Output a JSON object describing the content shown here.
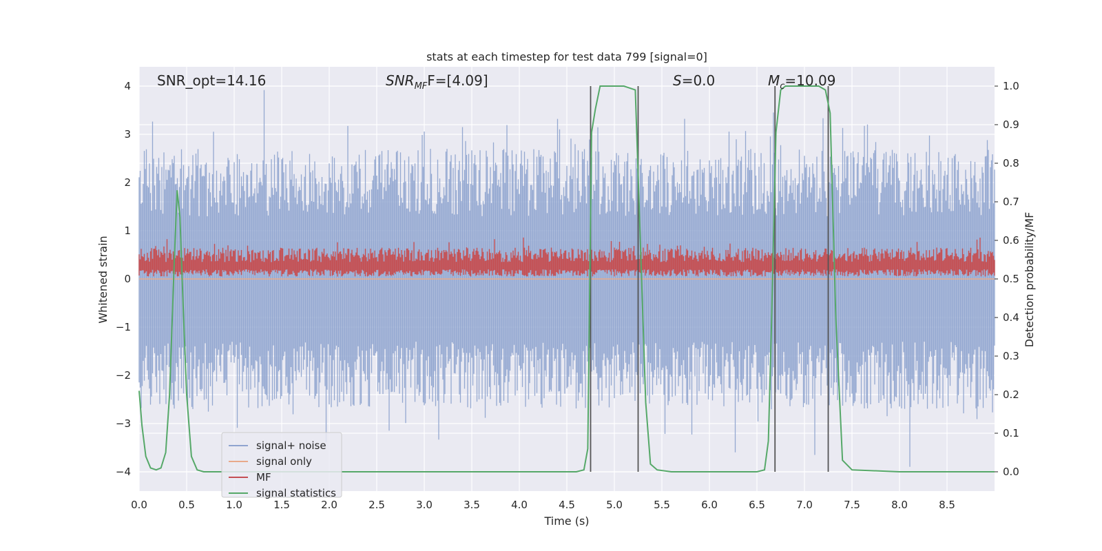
{
  "chart_data": {
    "type": "line",
    "title": "stats at each timestep for test data 799 [signal=0]",
    "xlabel": "Time (s)",
    "ylabel_left": "Whitened strain",
    "ylabel_right": "Detection probability/MF",
    "xlim": [
      0.0,
      9.0
    ],
    "ylim_left": [
      -4.4,
      4.4
    ],
    "ylim_right": [
      -0.05,
      1.05
    ],
    "x_ticks": [
      "0.0",
      "0.5",
      "1.0",
      "1.5",
      "2.0",
      "2.5",
      "3.0",
      "3.5",
      "4.0",
      "4.5",
      "5.0",
      "5.5",
      "6.0",
      "6.5",
      "7.0",
      "7.5",
      "8.0",
      "8.5"
    ],
    "y_ticks_left": [
      "−4",
      "−3",
      "−2",
      "−1",
      "0",
      "1",
      "2",
      "3",
      "4"
    ],
    "y_ticks_right": [
      "0.0",
      "0.1",
      "0.2",
      "0.3",
      "0.4",
      "0.5",
      "0.6",
      "0.7",
      "0.8",
      "0.9",
      "1.0"
    ],
    "grid": true,
    "legend_position": "bottom-left",
    "annotations": {
      "snr_opt": "SNR_opt=14.16",
      "snr_mf_main": "SNR",
      "snr_mf_sub": "MF",
      "snr_mf_value": "F=[4.09]",
      "s_label": "S",
      "s_value": "=0.0",
      "mc_main": "M",
      "mc_sub": "c",
      "mc_value": "=10.09"
    },
    "series": [
      {
        "name": "signal+ noise",
        "color": "#8fa4cf",
        "style": "noise band, amplitude ~±2.5 with spikes to ±4"
      },
      {
        "name": "signal only",
        "color": "#e8a98a",
        "values_note": "flat at 0"
      },
      {
        "name": "MF",
        "color": "#c44e52",
        "style": "band ~0.0 to 0.8 on left axis"
      },
      {
        "name": "signal statistics",
        "color": "#55a868",
        "x": [
          0.0,
          0.03,
          0.07,
          0.12,
          0.18,
          0.23,
          0.28,
          0.32,
          0.37,
          0.4,
          0.43,
          0.46,
          0.5,
          0.55,
          0.61,
          0.68,
          0.75,
          0.8,
          1.0,
          2.0,
          3.0,
          4.0,
          4.6,
          4.68,
          4.72,
          4.76,
          4.8,
          4.85,
          5.0,
          5.1,
          5.22,
          5.28,
          5.33,
          5.38,
          5.45,
          5.6,
          6.0,
          6.5,
          6.58,
          6.62,
          6.65,
          6.7,
          6.75,
          6.8,
          7.0,
          7.15,
          7.22,
          7.27,
          7.33,
          7.4,
          7.5,
          8.0,
          9.0
        ],
        "y": [
          0.21,
          0.12,
          0.04,
          0.01,
          0.005,
          0.01,
          0.05,
          0.2,
          0.55,
          0.73,
          0.66,
          0.45,
          0.2,
          0.04,
          0.005,
          0.0,
          0.0,
          0.0,
          0.0,
          0.0,
          0.0,
          0.0,
          0.0,
          0.005,
          0.06,
          0.88,
          0.94,
          1.0,
          1.0,
          1.0,
          0.99,
          0.55,
          0.18,
          0.02,
          0.005,
          0.0,
          0.0,
          0.0,
          0.005,
          0.08,
          0.35,
          0.88,
          0.99,
          1.0,
          1.0,
          1.0,
          0.99,
          0.93,
          0.4,
          0.03,
          0.005,
          0.0,
          0.0
        ]
      }
    ],
    "vertical_markers_x": [
      4.75,
      5.25,
      6.69,
      7.25
    ]
  }
}
